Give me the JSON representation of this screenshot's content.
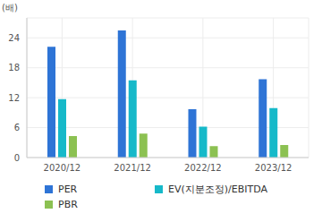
{
  "chart_data": {
    "type": "bar",
    "ylabel": "(배)",
    "categories": [
      "2020/12",
      "2021/12",
      "2022/12",
      "2023/12"
    ],
    "series": [
      {
        "name": "PER",
        "color": "#2e74d6",
        "values": [
          22.2,
          25.5,
          9.7,
          15.7
        ]
      },
      {
        "name": "EV(지분조정)/EBITDA",
        "color": "#16b9c9",
        "values": [
          11.7,
          15.5,
          6.2,
          9.9
        ]
      },
      {
        "name": "PBR",
        "color": "#8cc152",
        "values": [
          4.3,
          4.8,
          2.3,
          2.5
        ]
      }
    ],
    "ylim": [
      0,
      28
    ],
    "yticks": [
      0,
      6,
      12,
      18,
      24
    ],
    "grid": true,
    "legend": "bottom"
  }
}
